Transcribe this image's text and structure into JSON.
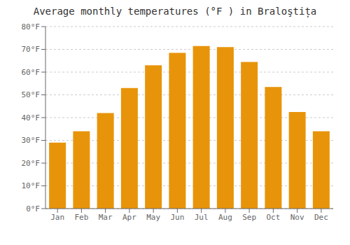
{
  "chart_data": {
    "type": "bar",
    "title": "Average monthly temperatures (°F ) in Braloştița",
    "categories": [
      "Jan",
      "Feb",
      "Mar",
      "Apr",
      "May",
      "Jun",
      "Jul",
      "Aug",
      "Sep",
      "Oct",
      "Nov",
      "Dec"
    ],
    "values": [
      29.0,
      34.0,
      42.0,
      53.0,
      63.0,
      68.5,
      71.5,
      71.0,
      64.5,
      53.5,
      42.5,
      34.0
    ],
    "color": "#E8940A",
    "ylim": [
      0,
      80
    ],
    "yticks": [
      {
        "value": 0,
        "label": "0°F"
      },
      {
        "value": 10,
        "label": "10°F"
      },
      {
        "value": 20,
        "label": "20°F"
      },
      {
        "value": 30,
        "label": "30°F"
      },
      {
        "value": 40,
        "label": "40°F"
      },
      {
        "value": 50,
        "label": "50°F"
      },
      {
        "value": 60,
        "label": "60°F"
      },
      {
        "value": 70,
        "label": "70°F"
      },
      {
        "value": 80,
        "label": "80°F"
      }
    ],
    "grid": true
  }
}
